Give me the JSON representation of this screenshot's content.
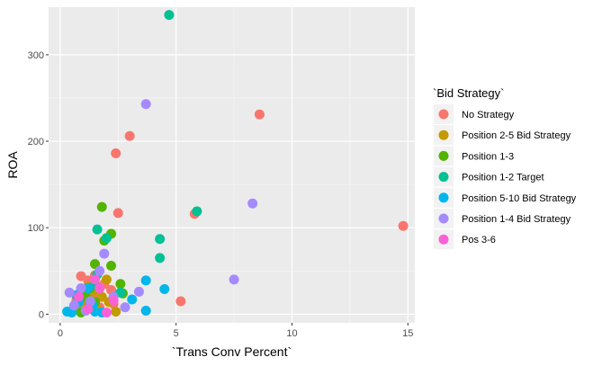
{
  "chart_data": {
    "type": "scatter",
    "title": "",
    "xlabel": "`Trans Conv Percent`",
    "ylabel": "ROA",
    "xlim": [
      -0.5,
      15.3
    ],
    "ylim": [
      -10,
      355
    ],
    "x_ticks": [
      0,
      5,
      10,
      15
    ],
    "x_tick_labels": [
      "0",
      "5",
      "10",
      "15"
    ],
    "y_ticks": [
      0,
      100,
      200,
      300
    ],
    "y_tick_labels": [
      "0",
      "100",
      "200",
      "300"
    ],
    "grid": true,
    "legend": {
      "title": "`Bid Strategy`",
      "position": "right"
    },
    "series": [
      {
        "name": "No Strategy",
        "color": "#F8766D",
        "points": [
          [
            8.6,
            231
          ],
          [
            14.8,
            102
          ],
          [
            3.0,
            206
          ],
          [
            2.4,
            186
          ],
          [
            2.5,
            117
          ],
          [
            5.8,
            116
          ],
          [
            5.2,
            15
          ],
          [
            1.5,
            45
          ],
          [
            1.2,
            39
          ],
          [
            0.9,
            44
          ],
          [
            1.6,
            25
          ],
          [
            2.2,
            28
          ],
          [
            1.9,
            35
          ],
          [
            1.0,
            22
          ],
          [
            1.4,
            18
          ],
          [
            2.3,
            12
          ],
          [
            1.7,
            8
          ],
          [
            0.7,
            16
          ],
          [
            1.1,
            6
          ]
        ]
      },
      {
        "name": "Position 2-5 Bid Strategy",
        "color": "#C49A00",
        "points": [
          [
            1.2,
            32
          ],
          [
            1.8,
            20
          ],
          [
            2.1,
            14
          ],
          [
            1.0,
            10
          ],
          [
            2.4,
            3
          ],
          [
            1.6,
            6
          ],
          [
            1.4,
            26
          ],
          [
            0.8,
            12
          ],
          [
            2.0,
            40
          ]
        ]
      },
      {
        "name": "Position 1-3",
        "color": "#53B400",
        "points": [
          [
            1.8,
            124
          ],
          [
            2.2,
            93
          ],
          [
            1.5,
            58
          ],
          [
            2.2,
            56
          ],
          [
            1.9,
            85
          ],
          [
            2.6,
            35
          ],
          [
            1.3,
            30
          ],
          [
            0.9,
            28
          ],
          [
            1.1,
            20
          ],
          [
            2.7,
            24
          ],
          [
            0.6,
            9
          ],
          [
            0.9,
            2
          ],
          [
            1.5,
            14
          ]
        ]
      },
      {
        "name": "Position 1-2 Target",
        "color": "#00C094",
        "points": [
          [
            4.7,
            346
          ],
          [
            5.9,
            119
          ],
          [
            4.3,
            87
          ],
          [
            1.6,
            98
          ],
          [
            2.0,
            88
          ],
          [
            4.3,
            65
          ],
          [
            1.6,
            46
          ],
          [
            2.6,
            25
          ],
          [
            1.3,
            12
          ],
          [
            1.5,
            34
          ]
        ]
      },
      {
        "name": "Position 5-10 Bid Strategy",
        "color": "#00B6EB",
        "points": [
          [
            3.7,
            39
          ],
          [
            4.5,
            29
          ],
          [
            3.1,
            17
          ],
          [
            3.7,
            4
          ],
          [
            0.3,
            3
          ],
          [
            0.5,
            2
          ],
          [
            1.8,
            2
          ],
          [
            1.5,
            3
          ],
          [
            0.8,
            14
          ],
          [
            1.4,
            10
          ],
          [
            1.2,
            30
          ],
          [
            0.7,
            22
          ]
        ]
      },
      {
        "name": "Position 1-4 Bid Strategy",
        "color": "#A58AFF",
        "points": [
          [
            3.7,
            243
          ],
          [
            8.3,
            128
          ],
          [
            7.5,
            40
          ],
          [
            1.9,
            70
          ],
          [
            3.4,
            26
          ],
          [
            2.8,
            8
          ],
          [
            0.4,
            25
          ],
          [
            0.9,
            30
          ],
          [
            0.6,
            10
          ],
          [
            1.7,
            50
          ],
          [
            1.3,
            15
          ],
          [
            2.3,
            20
          ],
          [
            1.1,
            4
          ]
        ]
      },
      {
        "name": "Pos 3-6",
        "color": "#FB61D7",
        "points": [
          [
            2.0,
            2
          ],
          [
            2.3,
            16
          ],
          [
            1.7,
            30
          ],
          [
            1.2,
            6
          ],
          [
            0.8,
            20
          ],
          [
            1.5,
            40
          ]
        ]
      }
    ]
  },
  "colors": {
    "panel_background": "#EBEBEB",
    "grid_major": "#FFFFFF",
    "tick_text": "#4D4D4D"
  }
}
